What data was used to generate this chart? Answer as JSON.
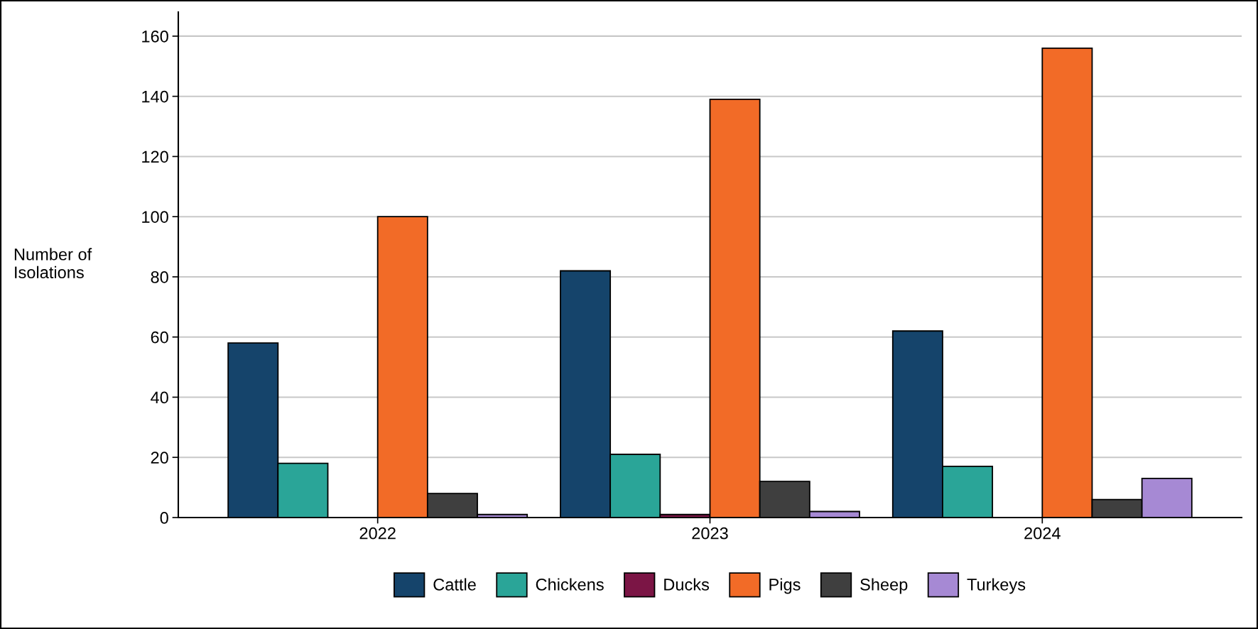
{
  "chart_data": {
    "type": "bar",
    "ylabel": "Number of\nIsolations",
    "categories": [
      "2022",
      "2023",
      "2024"
    ],
    "series": [
      {
        "name": "Cattle",
        "color": "#15446b",
        "values": [
          58,
          82,
          62
        ]
      },
      {
        "name": "Chickens",
        "color": "#2aa598",
        "values": [
          18,
          21,
          17
        ]
      },
      {
        "name": "Ducks",
        "color": "#7b1545",
        "values": [
          0,
          1,
          0
        ]
      },
      {
        "name": "Pigs",
        "color": "#f26b27",
        "values": [
          100,
          139,
          156
        ]
      },
      {
        "name": "Sheep",
        "color": "#3f3f3f",
        "values": [
          8,
          12,
          6
        ]
      },
      {
        "name": "Turkeys",
        "color": "#a689d4",
        "values": [
          1,
          2,
          13
        ]
      }
    ],
    "ylim": [
      0,
      168
    ],
    "yticks": [
      0,
      20,
      40,
      60,
      80,
      100,
      120,
      140,
      160
    ],
    "grid": "y",
    "legend": "bottom"
  }
}
